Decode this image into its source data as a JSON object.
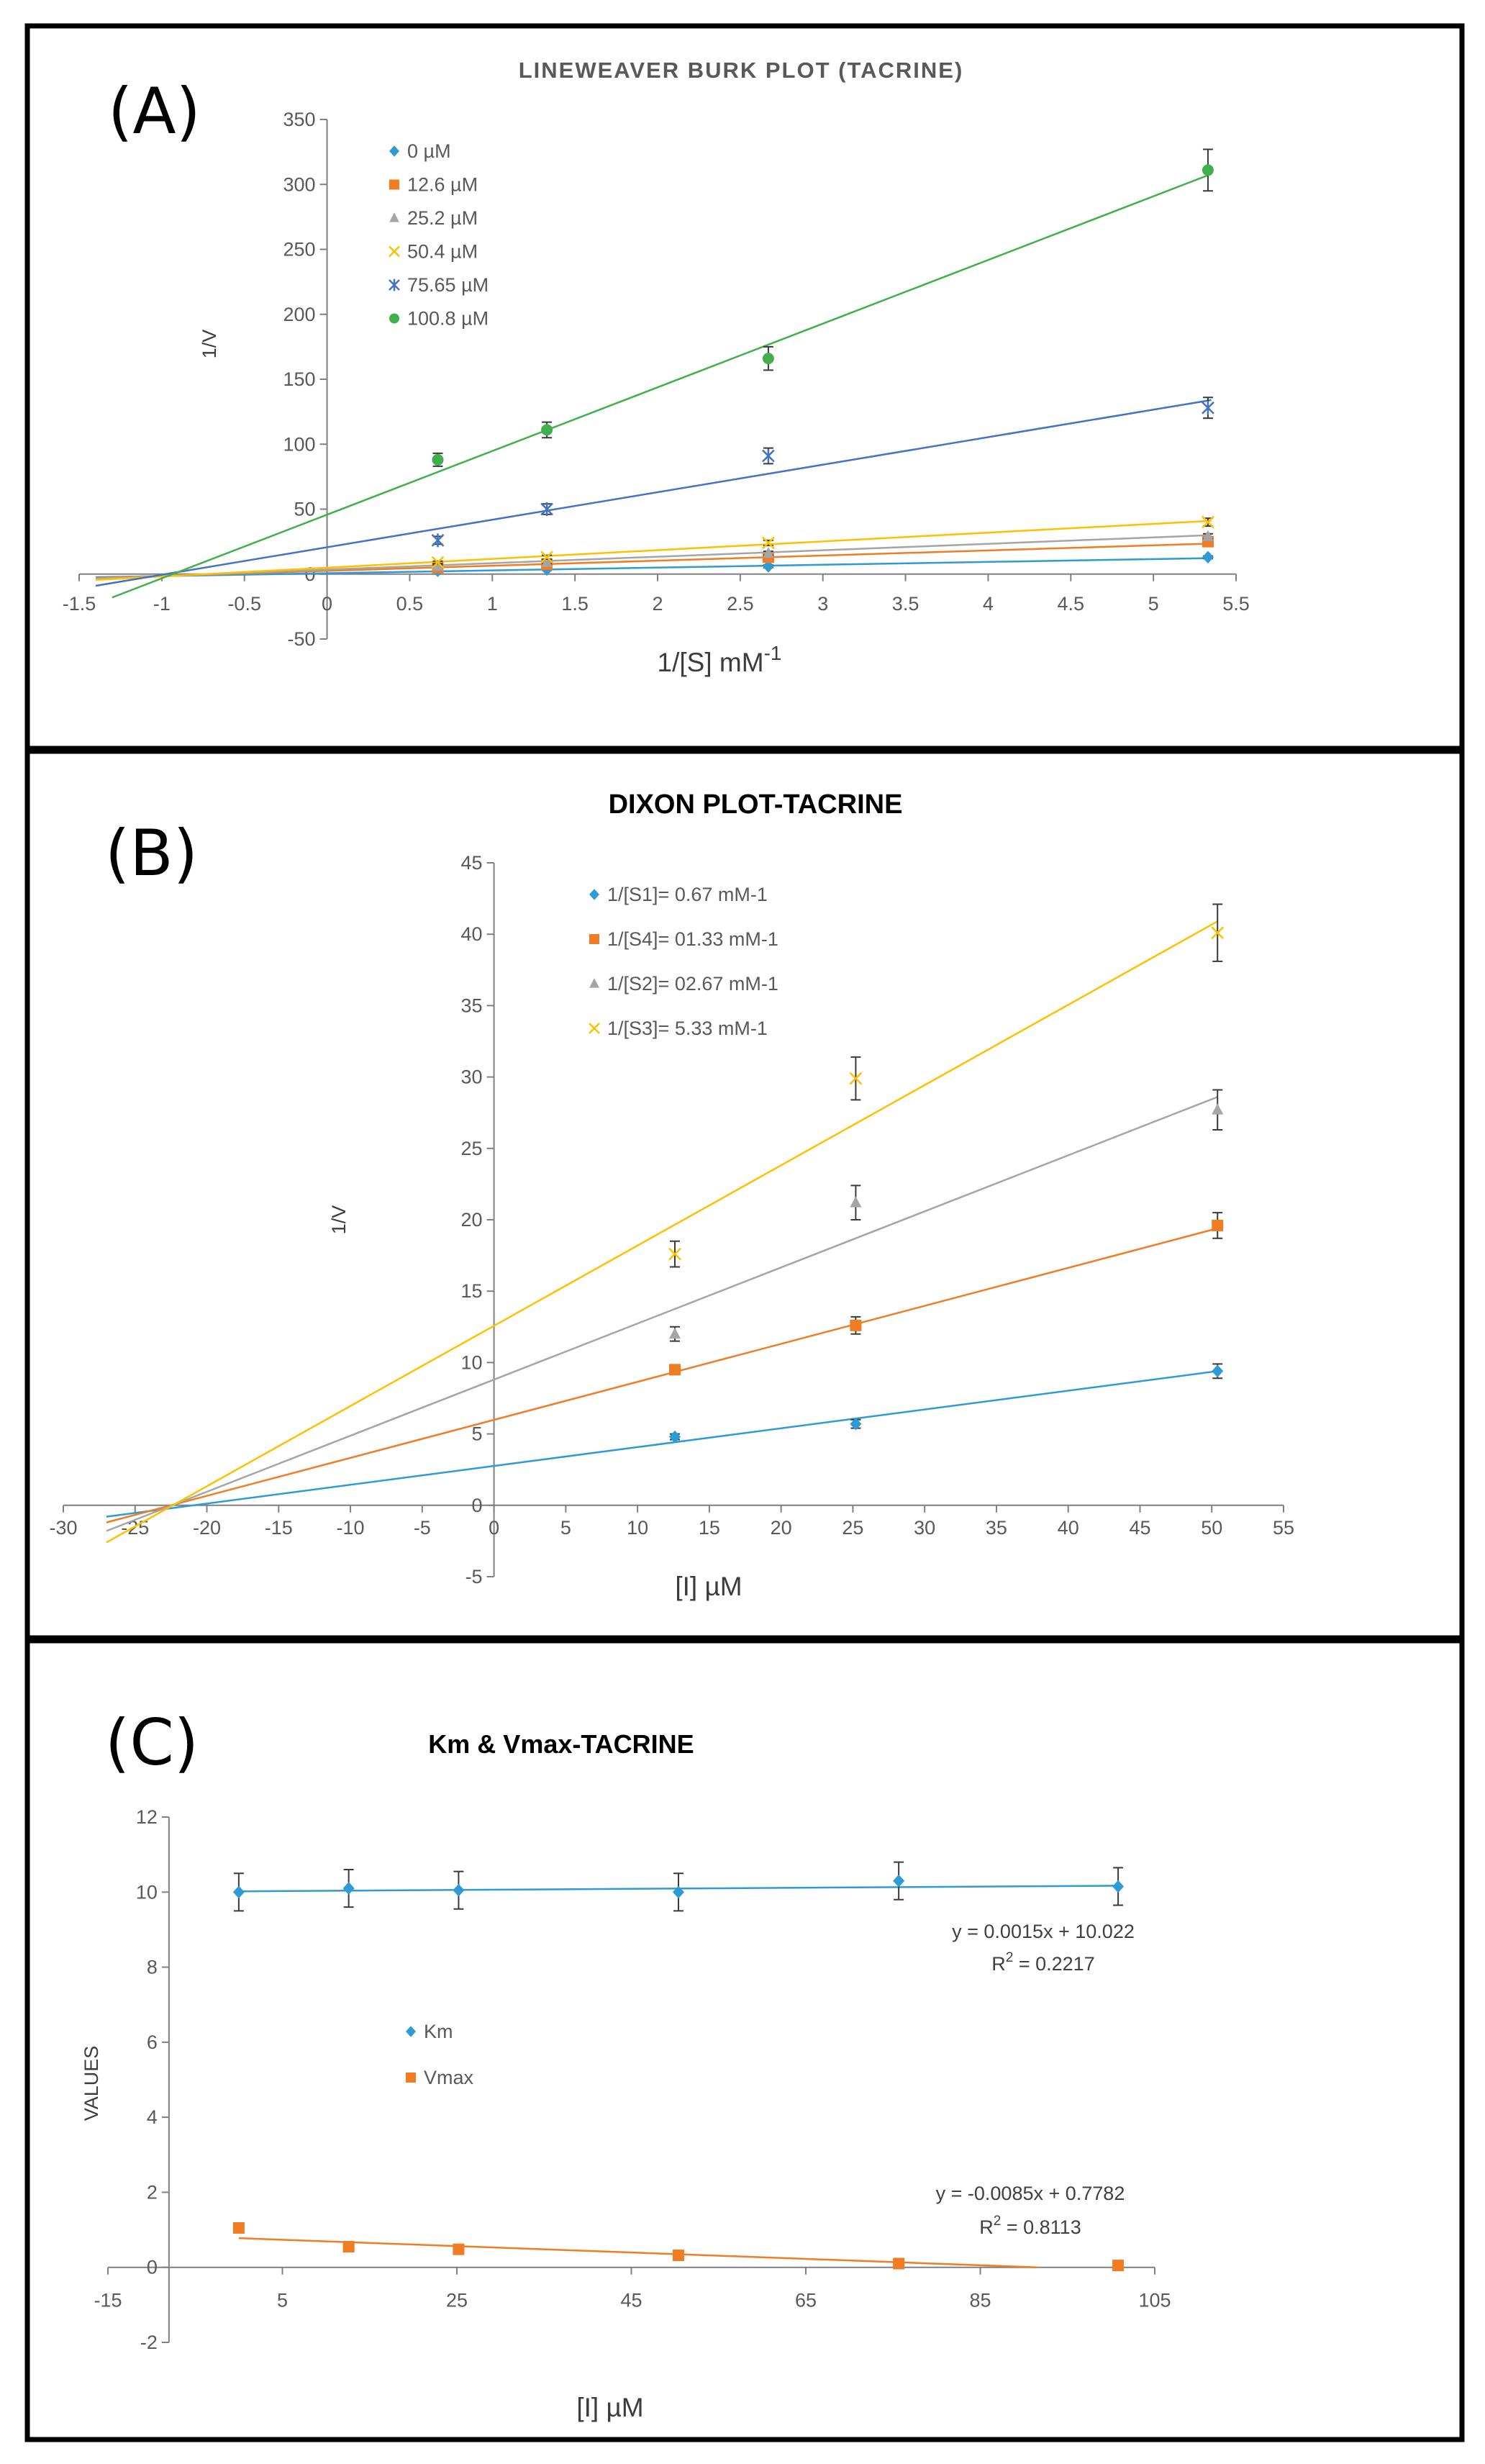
{
  "figure": {
    "panels": [
      {
        "letter": "(A)"
      },
      {
        "letter": "(B)"
      },
      {
        "letter": "(C)"
      }
    ],
    "colors": {
      "blue": "#2e9ad6",
      "orange": "#f07c23",
      "gray": "#a5a5a5",
      "yellow": "#ffc000",
      "navy": "#4472c4",
      "green": "#41b04c",
      "frame": "#000000",
      "axis": "#808080"
    }
  },
  "chart_data": [
    {
      "type": "line",
      "title": "LINEWEAVER BURK PLOT (TACRINE)",
      "xlabel": "1/[S] mM",
      "xlabel_sup": "-1",
      "ylabel": "1/V",
      "xlim": [
        -1.5,
        5.5
      ],
      "ylim": [
        -50,
        350
      ],
      "xticks": [
        -1.5,
        -1,
        -0.5,
        0,
        0.5,
        1,
        1.5,
        2,
        2.5,
        3,
        3.5,
        4,
        4.5,
        5,
        5.5
      ],
      "yticks": [
        -50,
        0,
        50,
        100,
        150,
        200,
        250,
        300,
        350
      ],
      "legend_position": "top-left",
      "series": [
        {
          "name": "0  µM",
          "marker": "diamond",
          "color": "#2e9ad6",
          "x": [
            0.67,
            1.33,
            2.67,
            5.33
          ],
          "y": [
            2.5,
            3.5,
            6,
            13
          ],
          "err": [
            0.5,
            0.5,
            1,
            1
          ],
          "fit": [
            [
              -1.4,
              -2.4
            ],
            [
              5.35,
              12.3
            ]
          ]
        },
        {
          "name": "12.6  µM",
          "marker": "square",
          "color": "#f07c23",
          "x": [
            0.67,
            1.33,
            2.67,
            5.33
          ],
          "y": [
            5,
            7.5,
            13,
            25
          ],
          "err": [
            1,
            1,
            1.5,
            2
          ],
          "fit": [
            [
              -1.4,
              -3
            ],
            [
              5.35,
              23.5
            ]
          ]
        },
        {
          "name": "25.2  µM",
          "marker": "triangle",
          "color": "#a5a5a5",
          "x": [
            0.67,
            1.33,
            2.67,
            5.33
          ],
          "y": [
            6,
            9,
            16,
            29
          ],
          "err": [
            1,
            1,
            1.5,
            2
          ],
          "fit": [
            [
              -1.4,
              -3.5
            ],
            [
              5.35,
              30
            ]
          ]
        },
        {
          "name": "50.4  µM",
          "marker": "x",
          "color": "#ffc000",
          "x": [
            0.67,
            1.33,
            2.67,
            5.33
          ],
          "y": [
            9,
            13,
            24,
            40
          ],
          "err": [
            1,
            1.5,
            2,
            3
          ],
          "fit": [
            [
              -1.4,
              -4.5
            ],
            [
              5.35,
              41
            ]
          ]
        },
        {
          "name": "75.65  µM",
          "marker": "star",
          "color": "#4472c4",
          "x": [
            0.67,
            1.33,
            2.67,
            5.33
          ],
          "y": [
            26,
            50,
            91,
            128
          ],
          "err": [
            3,
            4,
            6,
            8
          ],
          "fit": [
            [
              -1.4,
              -9
            ],
            [
              5.35,
              134
            ]
          ]
        },
        {
          "name": "100.8  µM",
          "marker": "circle",
          "color": "#41b04c",
          "x": [
            0.67,
            1.33,
            2.67,
            5.33
          ],
          "y": [
            88,
            111,
            166,
            311
          ],
          "err": [
            5,
            6,
            9,
            16
          ],
          "fit": [
            [
              -1.3,
              -18
            ],
            [
              5.35,
              308
            ]
          ]
        }
      ]
    },
    {
      "type": "line",
      "title": "DIXON PLOT-TACRINE",
      "xlabel": "[I] µM",
      "ylabel": "1/V",
      "xlim": [
        -30,
        55
      ],
      "ylim": [
        -5,
        45
      ],
      "xticks": [
        -30,
        -25,
        -20,
        -15,
        -10,
        -5,
        0,
        5,
        10,
        15,
        20,
        25,
        30,
        35,
        40,
        45,
        50,
        55
      ],
      "yticks": [
        -5,
        0,
        5,
        10,
        15,
        20,
        25,
        30,
        35,
        40,
        45
      ],
      "legend_position": "top-center",
      "series": [
        {
          "name": "1/[S1]= 0.67 mM-1",
          "marker": "diamond",
          "color": "#2e9ad6",
          "x": [
            12.6,
            25.2,
            50.4
          ],
          "y": [
            4.8,
            5.7,
            9.4
          ],
          "err": [
            0.2,
            0.3,
            0.5
          ],
          "fit": [
            [
              -27,
              -0.8
            ],
            [
              50.4,
              9.4
            ]
          ]
        },
        {
          "name": "1/[S4]= 01.33 mM-1",
          "marker": "square",
          "color": "#f07c23",
          "x": [
            12.6,
            25.2,
            50.4
          ],
          "y": [
            9.5,
            12.6,
            19.6
          ],
          "err": [
            0.3,
            0.6,
            0.9
          ],
          "fit": [
            [
              -27,
              -1.2
            ],
            [
              50.4,
              19.4
            ]
          ]
        },
        {
          "name": "1/[S2]= 02.67 mM-1",
          "marker": "triangle",
          "color": "#a5a5a5",
          "x": [
            12.6,
            25.2,
            50.4
          ],
          "y": [
            12,
            21.2,
            27.7
          ],
          "err": [
            0.5,
            1.2,
            1.4
          ],
          "fit": [
            [
              -27,
              -1.8
            ],
            [
              50.4,
              28.6
            ]
          ]
        },
        {
          "name": "1/[S3]= 5.33 mM-1",
          "marker": "x",
          "color": "#ffc000",
          "x": [
            12.6,
            25.2,
            50.4
          ],
          "y": [
            17.6,
            29.9,
            40.1
          ],
          "err": [
            0.9,
            1.5,
            2
          ],
          "fit": [
            [
              -27,
              -2.6
            ],
            [
              50.4,
              40.9
            ]
          ]
        }
      ]
    },
    {
      "type": "line",
      "title": "Km & Vmax-TACRINE",
      "xlabel": "[I] µM",
      "ylabel": "VALUES",
      "xlim": [
        -15,
        105
      ],
      "ylim": [
        -2,
        12
      ],
      "xticks": [
        -15,
        5,
        25,
        45,
        65,
        85,
        105
      ],
      "yticks": [
        -2,
        0,
        2,
        4,
        6,
        8,
        10,
        12
      ],
      "legend_position": "center-left",
      "series": [
        {
          "name": "Km",
          "marker": "diamond",
          "color": "#2e9ad6",
          "x": [
            0,
            12.6,
            25.2,
            50.4,
            75.65,
            100.8
          ],
          "y": [
            10,
            10.1,
            10.05,
            10,
            10.3,
            10.15
          ],
          "err": [
            0.5,
            0.5,
            0.5,
            0.5,
            0.5,
            0.5
          ],
          "fit": [
            [
              0,
              10.02
            ],
            [
              100.8,
              10.17
            ]
          ]
        },
        {
          "name": "Vmax",
          "marker": "square",
          "color": "#f07c23",
          "x": [
            0,
            12.6,
            25.2,
            50.4,
            75.65,
            100.8
          ],
          "y": [
            1.05,
            0.55,
            0.48,
            0.32,
            0.1,
            0.05
          ],
          "err": [
            0,
            0,
            0,
            0,
            0,
            0
          ],
          "fit": [
            [
              0,
              0.778
            ],
            [
              91.5,
              0
            ]
          ]
        }
      ],
      "annotations": [
        {
          "id": "km",
          "equation": "y = 0.0015x + 10.022",
          "r2_label": "R",
          "r2_sup": "2",
          "r2_value": " = 0.2217"
        },
        {
          "id": "vmax",
          "equation": "y = -0.0085x + 0.7782",
          "r2_label": "R",
          "r2_sup": "2",
          "r2_value": " = 0.8113"
        }
      ]
    }
  ]
}
